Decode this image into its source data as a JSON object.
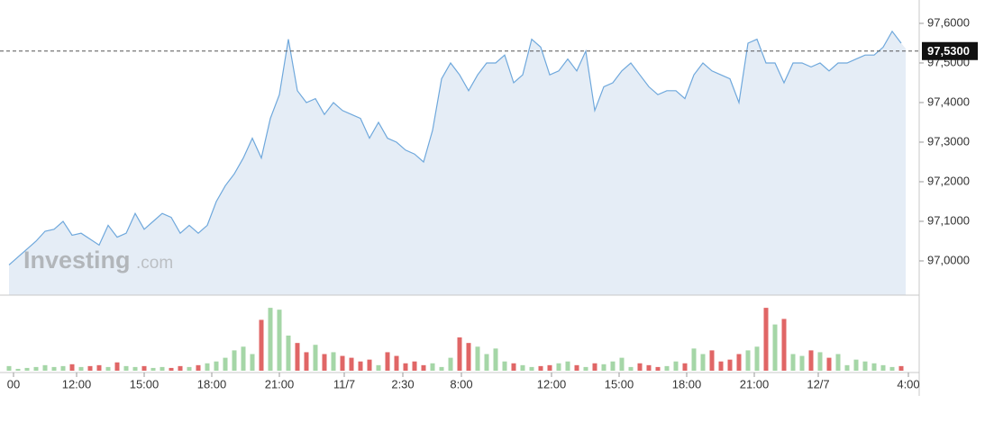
{
  "chart_data": {
    "type": "area",
    "watermark": {
      "brand": "Investing",
      "suffix": ".com"
    },
    "values": [
      96.99,
      97.01,
      97.03,
      97.05,
      97.075,
      97.08,
      97.1,
      97.065,
      97.07,
      97.055,
      97.04,
      97.09,
      97.06,
      97.07,
      97.12,
      97.08,
      97.1,
      97.12,
      97.11,
      97.07,
      97.09,
      97.07,
      97.09,
      97.15,
      97.19,
      97.22,
      97.26,
      97.31,
      97.26,
      97.36,
      97.42,
      97.56,
      97.43,
      97.4,
      97.41,
      97.37,
      97.4,
      97.38,
      97.37,
      97.36,
      97.31,
      97.35,
      97.31,
      97.3,
      97.28,
      97.27,
      97.25,
      97.33,
      97.46,
      97.5,
      97.47,
      97.43,
      97.47,
      97.5,
      97.5,
      97.52,
      97.45,
      97.47,
      97.56,
      97.54,
      97.47,
      97.48,
      97.51,
      97.48,
      97.53,
      97.38,
      97.44,
      97.45,
      97.48,
      97.5,
      97.47,
      97.44,
      97.42,
      97.43,
      97.43,
      97.41,
      97.47,
      97.5,
      97.48,
      97.47,
      97.46,
      97.4,
      97.55,
      97.56,
      97.5,
      97.5,
      97.45,
      97.5,
      97.5,
      97.49,
      97.5,
      97.48,
      97.5,
      97.5,
      97.51,
      97.52,
      97.52,
      97.54,
      97.58,
      97.55
    ],
    "color": "#6fa8dc",
    "fill": "#e5edf6",
    "xlim": [
      0,
      99
    ],
    "xticks": [
      {
        "value": 0.5,
        "label": "00"
      },
      {
        "value": 7.5,
        "label": "12:00"
      },
      {
        "value": 15,
        "label": "15:00"
      },
      {
        "value": 22.5,
        "label": "18:00"
      },
      {
        "value": 30,
        "label": "21:00"
      },
      {
        "value": 37.2,
        "label": "11/7"
      },
      {
        "value": 43.7,
        "label": "2:30"
      },
      {
        "value": 50.2,
        "label": "8:00"
      },
      {
        "value": 60.2,
        "label": "12:00"
      },
      {
        "value": 67.7,
        "label": "15:00"
      },
      {
        "value": 75.2,
        "label": "18:00"
      },
      {
        "value": 82.7,
        "label": "21:00"
      },
      {
        "value": 89.8,
        "label": "12/7"
      },
      {
        "value": 99.8,
        "label": "4:00"
      }
    ],
    "ylim": [
      96.9136,
      97.659
    ],
    "yticks": [
      {
        "value": 97.0,
        "label": "97,0000"
      },
      {
        "value": 97.1,
        "label": "97,1000"
      },
      {
        "value": 97.2,
        "label": "97,2000"
      },
      {
        "value": 97.3,
        "label": "97,3000"
      },
      {
        "value": 97.4,
        "label": "97,4000"
      },
      {
        "value": 97.5,
        "label": "97,5000"
      },
      {
        "value": 97.6,
        "label": "97,6000"
      }
    ],
    "current": {
      "value": 97.53,
      "label": "97,5300"
    },
    "volume": {
      "values": [
        5,
        2,
        3,
        4,
        6,
        4,
        5,
        7,
        4,
        5,
        6,
        4,
        9,
        5,
        4,
        5,
        3,
        4,
        3,
        5,
        4,
        6,
        8,
        10,
        14,
        22,
        26,
        18,
        55,
        68,
        66,
        38,
        30,
        20,
        28,
        18,
        20,
        16,
        14,
        10,
        12,
        6,
        20,
        16,
        8,
        10,
        6,
        8,
        4,
        14,
        36,
        30,
        26,
        18,
        24,
        10,
        8,
        6,
        4,
        5,
        6,
        8,
        10,
        6,
        4,
        8,
        7,
        10,
        14,
        4,
        8,
        6,
        4,
        5,
        10,
        8,
        24,
        18,
        22,
        10,
        12,
        18,
        22,
        26,
        68,
        50,
        56,
        18,
        16,
        22,
        20,
        14,
        18,
        6,
        12,
        10,
        8,
        6,
        4,
        5
      ],
      "ylim": [
        0,
        72
      ],
      "up_color": "#a5d6a7",
      "down_color": "#e06666"
    }
  }
}
